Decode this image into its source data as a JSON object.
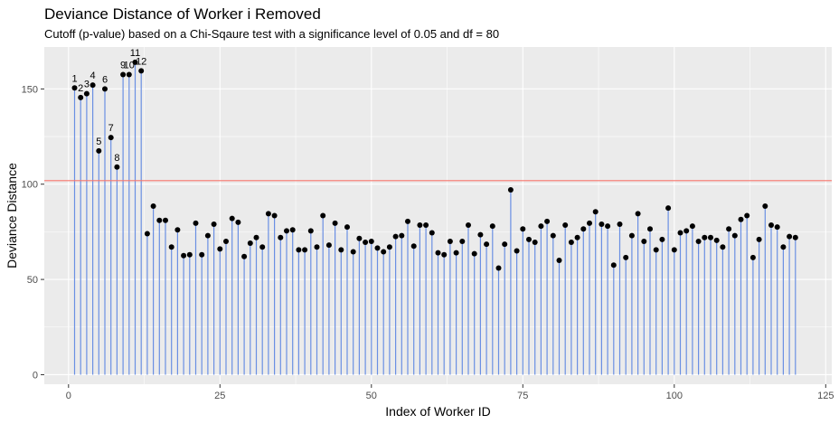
{
  "chart_data": {
    "type": "scatter",
    "title": "Deviance Distance of Worker i Removed",
    "subtitle": "Cutoff (p-value) based on a Chi-Sqaure test with a significance level of 0.05 and df = 80",
    "xlabel": "Index of Worker ID",
    "ylabel": "Deviance Distance",
    "xlim": [
      -4,
      126
    ],
    "ylim": [
      -5,
      172
    ],
    "x_ticks": [
      0,
      25,
      50,
      75,
      100,
      125
    ],
    "y_ticks": [
      0,
      50,
      100,
      150
    ],
    "cutoff": 101.88,
    "grid": true,
    "legend": "none",
    "colors": {
      "panel": "#ebebeb",
      "grid": "#ffffff",
      "stem": "#6a8fe3",
      "point": "#000000",
      "cutoff": "#f8766d"
    },
    "x": [
      1,
      2,
      3,
      4,
      5,
      6,
      7,
      8,
      9,
      10,
      11,
      12,
      13,
      14,
      15,
      16,
      17,
      18,
      19,
      20,
      21,
      22,
      23,
      24,
      25,
      26,
      27,
      28,
      29,
      30,
      31,
      32,
      33,
      34,
      35,
      36,
      37,
      38,
      39,
      40,
      41,
      42,
      43,
      44,
      45,
      46,
      47,
      48,
      49,
      50,
      51,
      52,
      53,
      54,
      55,
      56,
      57,
      58,
      59,
      60,
      61,
      62,
      63,
      64,
      65,
      66,
      67,
      68,
      69,
      70,
      71,
      72,
      73,
      74,
      75,
      76,
      77,
      78,
      79,
      80,
      81,
      82,
      83,
      84,
      85,
      86,
      87,
      88,
      89,
      90,
      91,
      92,
      93,
      94,
      95,
      96,
      97,
      98,
      99,
      100,
      101,
      102,
      103,
      104,
      105,
      106,
      107,
      108,
      109,
      110,
      111,
      112,
      113,
      114,
      115,
      116,
      117,
      118,
      119,
      120
    ],
    "y": [
      150.5,
      145.5,
      147.5,
      152,
      117.5,
      150,
      124.5,
      109,
      157.5,
      157.5,
      164,
      159.5,
      74,
      88.5,
      81,
      81,
      67,
      76,
      62.5,
      63,
      79.5,
      63,
      73,
      79,
      66,
      70,
      82,
      80,
      62,
      69,
      72,
      67,
      84.5,
      83.5,
      72,
      75.5,
      76,
      65.5,
      65.5,
      75.5,
      67,
      83.5,
      68,
      79.5,
      65.5,
      77.5,
      64.5,
      71.5,
      69.5,
      70,
      66.5,
      64.5,
      67,
      72.5,
      73,
      80.5,
      67.5,
      78.5,
      78.5,
      74.5,
      64,
      63,
      70,
      64,
      70,
      78.5,
      63.5,
      73.5,
      68.5,
      78,
      56,
      68.5,
      97,
      65,
      76.5,
      71,
      69.5,
      78,
      80.5,
      73,
      60,
      78.5,
      69.5,
      72,
      76.5,
      79.5,
      85.5,
      79,
      78,
      57.5,
      79,
      61.5,
      73,
      84.5,
      70,
      76.5,
      65.5,
      71,
      87.5,
      65.5,
      74.5,
      75.5,
      78,
      70,
      72,
      72,
      70.5,
      67,
      76.5,
      73,
      81.5,
      83.5,
      61.5,
      71,
      88.5,
      78.5,
      77.5,
      67,
      72.5,
      72
    ],
    "labels": [
      {
        "x": 1,
        "text": "1"
      },
      {
        "x": 2,
        "text": "2"
      },
      {
        "x": 3,
        "text": "3"
      },
      {
        "x": 4,
        "text": "4"
      },
      {
        "x": 5,
        "text": "5"
      },
      {
        "x": 6,
        "text": "6"
      },
      {
        "x": 7,
        "text": "7"
      },
      {
        "x": 8,
        "text": "8"
      },
      {
        "x": 9,
        "text": "9"
      },
      {
        "x": 10,
        "text": "10"
      },
      {
        "x": 11,
        "text": "11"
      },
      {
        "x": 12,
        "text": "12"
      }
    ]
  }
}
